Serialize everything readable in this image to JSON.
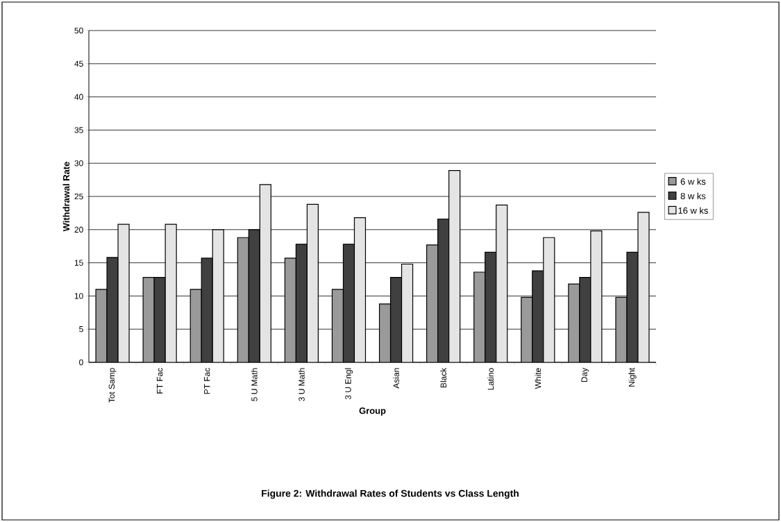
{
  "chart_data": {
    "type": "bar",
    "title": "Figure 2: Withdrawal Rates of Students vs Class Length",
    "xlabel": "Group",
    "ylabel": "Withdrawal Rate",
    "categories": [
      "Tot Samp",
      "FT Fac",
      "PT Fac",
      "5 U Math",
      "3 U Math",
      "3 U Engl",
      "Asian",
      "Black",
      "Latino",
      "White",
      "Day",
      "Night"
    ],
    "series": [
      {
        "name": "6 w ks",
        "color": "#9a9a9a",
        "values": [
          11,
          12.8,
          11,
          18.8,
          15.7,
          11,
          8.8,
          17.7,
          13.6,
          9.8,
          11.8,
          9.8
        ]
      },
      {
        "name": "8 w ks",
        "color": "#404040",
        "values": [
          15.8,
          12.8,
          15.7,
          20,
          17.8,
          17.8,
          12.8,
          21.6,
          16.6,
          13.8,
          12.8,
          16.6
        ]
      },
      {
        "name": "16 w ks",
        "color": "#e4e4e4",
        "values": [
          20.8,
          20.8,
          20,
          26.8,
          23.8,
          21.8,
          14.8,
          28.9,
          23.7,
          18.8,
          19.8,
          22.6
        ]
      }
    ],
    "ylim": [
      0,
      50
    ],
    "yticks": [
      0,
      5,
      10,
      15,
      20,
      25,
      30,
      35,
      40,
      45,
      50
    ],
    "grid": "y",
    "legend": "right"
  }
}
